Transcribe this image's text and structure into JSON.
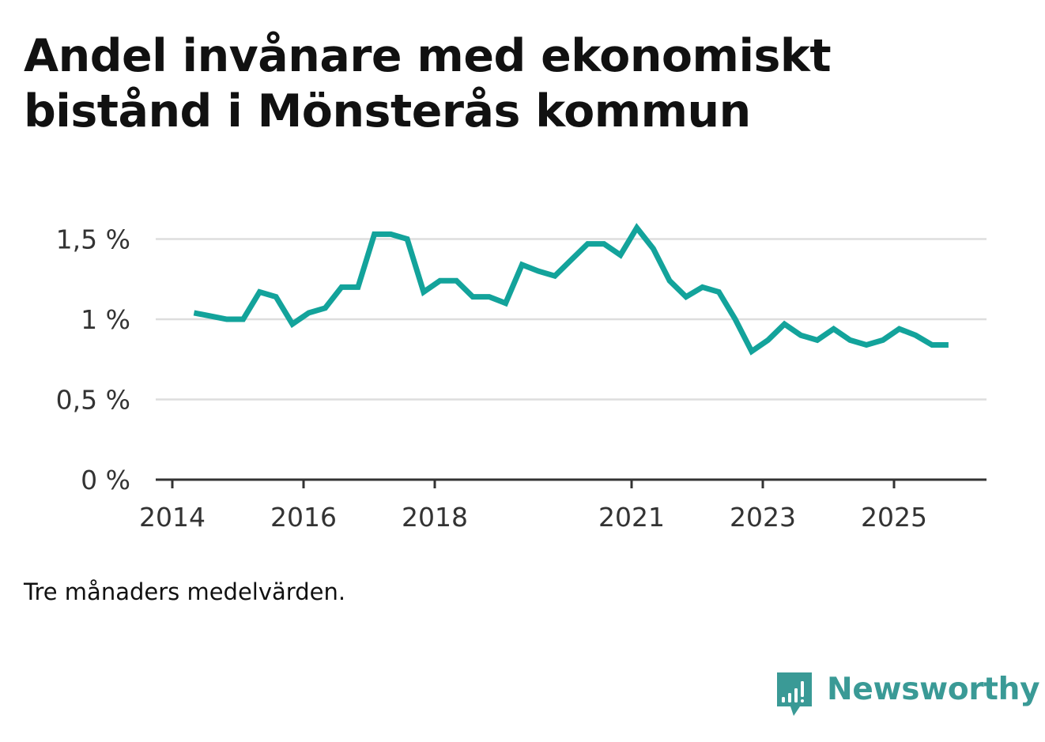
{
  "title": "Andel invånare med ekonomiskt bistånd i Mönsterås kommun",
  "note": "Tre månaders medelvärden.",
  "brand": {
    "name": "Newsworthy",
    "color": "#3a9a96",
    "icon": "newsworthy-logo-icon"
  },
  "chart_data": {
    "type": "line",
    "title": "Andel invånare med ekonomiskt bistånd i Mönsterås kommun",
    "xlabel": "",
    "ylabel": "",
    "x_ticks": [
      {
        "label": "2014",
        "value": 2014.0
      },
      {
        "label": "2016",
        "value": 2016.0
      },
      {
        "label": "2018",
        "value": 2018.0
      },
      {
        "label": "2021",
        "value": 2021.0
      },
      {
        "label": "2023",
        "value": 2023.0
      },
      {
        "label": "2025",
        "value": 2025.0
      }
    ],
    "y_ticks": [
      {
        "label": "0 %",
        "value": 0
      },
      {
        "label": "0,5 %",
        "value": 0.5
      },
      {
        "label": "1 %",
        "value": 1.0
      },
      {
        "label": "1,5 %",
        "value": 1.5
      }
    ],
    "xlim": [
      2014.0,
      2026.5
    ],
    "ylim": [
      0,
      1.6
    ],
    "grid": true,
    "line_color": "#13a39b",
    "series": [
      {
        "name": "Andel invånare med ekonomiskt bistånd",
        "x": [
          2014.33,
          2014.58,
          2014.83,
          2015.08,
          2015.33,
          2015.58,
          2015.83,
          2016.08,
          2016.33,
          2016.58,
          2016.83,
          2017.08,
          2017.33,
          2017.58,
          2017.83,
          2018.08,
          2018.33,
          2018.58,
          2018.83,
          2019.08,
          2019.33,
          2019.58,
          2019.83,
          2020.08,
          2020.33,
          2020.58,
          2020.83,
          2021.08,
          2021.33,
          2021.58,
          2021.83,
          2022.08,
          2022.33,
          2022.58,
          2022.83,
          2023.08,
          2023.33,
          2023.58,
          2023.83,
          2024.08,
          2024.33,
          2024.58,
          2024.83,
          2025.08,
          2025.33,
          2025.58,
          2025.83
        ],
        "values": [
          1.04,
          1.02,
          1.0,
          1.0,
          1.17,
          1.14,
          0.97,
          1.04,
          1.07,
          1.2,
          1.2,
          1.53,
          1.53,
          1.5,
          1.17,
          1.24,
          1.24,
          1.14,
          1.14,
          1.1,
          1.34,
          1.3,
          1.27,
          1.37,
          1.47,
          1.47,
          1.4,
          1.57,
          1.44,
          1.24,
          1.14,
          1.2,
          1.17,
          1.0,
          0.8,
          0.87,
          0.97,
          0.9,
          0.87,
          0.94,
          0.87,
          0.84,
          0.87,
          0.94,
          0.9,
          0.84,
          0.84
        ]
      }
    ]
  }
}
